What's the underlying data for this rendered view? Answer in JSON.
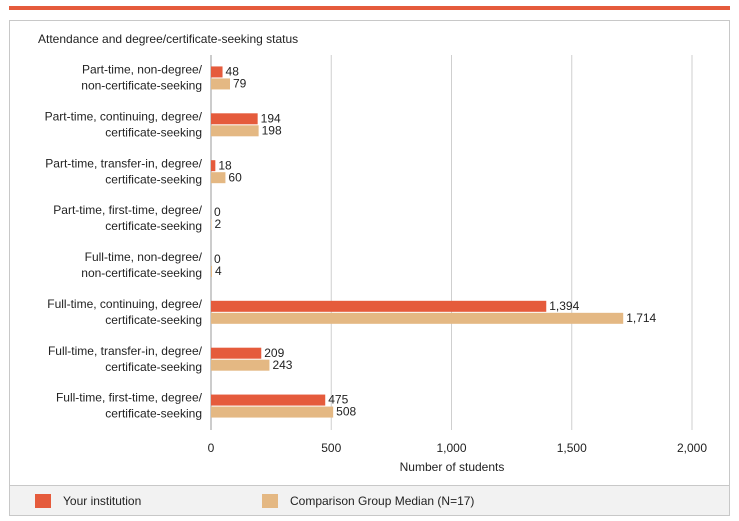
{
  "chart_data": {
    "type": "hbar",
    "title": "Attendance and degree/certificate-seeking status",
    "xlabel": "Number of students",
    "categories": [
      [
        "Part-time, non-degree/",
        "non-certificate-seeking"
      ],
      [
        "Part-time, continuing, degree/",
        "certificate-seeking"
      ],
      [
        "Part-time, transfer-in, degree/",
        "certificate-seeking"
      ],
      [
        "Part-time, first-time, degree/",
        "certificate-seeking"
      ],
      [
        "Full-time, non-degree/",
        "non-certificate-seeking"
      ],
      [
        "Full-time, continuing, degree/",
        "certificate-seeking"
      ],
      [
        "Full-time, transfer-in, degree/",
        "certificate-seeking"
      ],
      [
        "Full-time, first-time, degree/",
        "certificate-seeking"
      ]
    ],
    "series": [
      {
        "name": "Your institution",
        "color": "#e55b3c",
        "values": [
          48,
          194,
          18,
          0,
          0,
          1394,
          209,
          475
        ],
        "value_labels": [
          "48",
          "194",
          "18",
          "0",
          "0",
          "1,394",
          "209",
          "475"
        ]
      },
      {
        "name": "Comparison Group Median (N=17)",
        "color": "#e4b883",
        "values": [
          79,
          198,
          60,
          2,
          4,
          1714,
          243,
          508
        ],
        "value_labels": [
          "79",
          "198",
          "60",
          "2",
          "4",
          "1,714",
          "243",
          "508"
        ]
      }
    ],
    "xlim": [
      0,
      2000
    ],
    "xticks": [
      0,
      500,
      {
        "value": 1000,
        "label": "1,000"
      },
      {
        "value": 1500,
        "label": "1,500"
      },
      {
        "value": 2000,
        "label": "2,000"
      }
    ],
    "grid": true
  }
}
